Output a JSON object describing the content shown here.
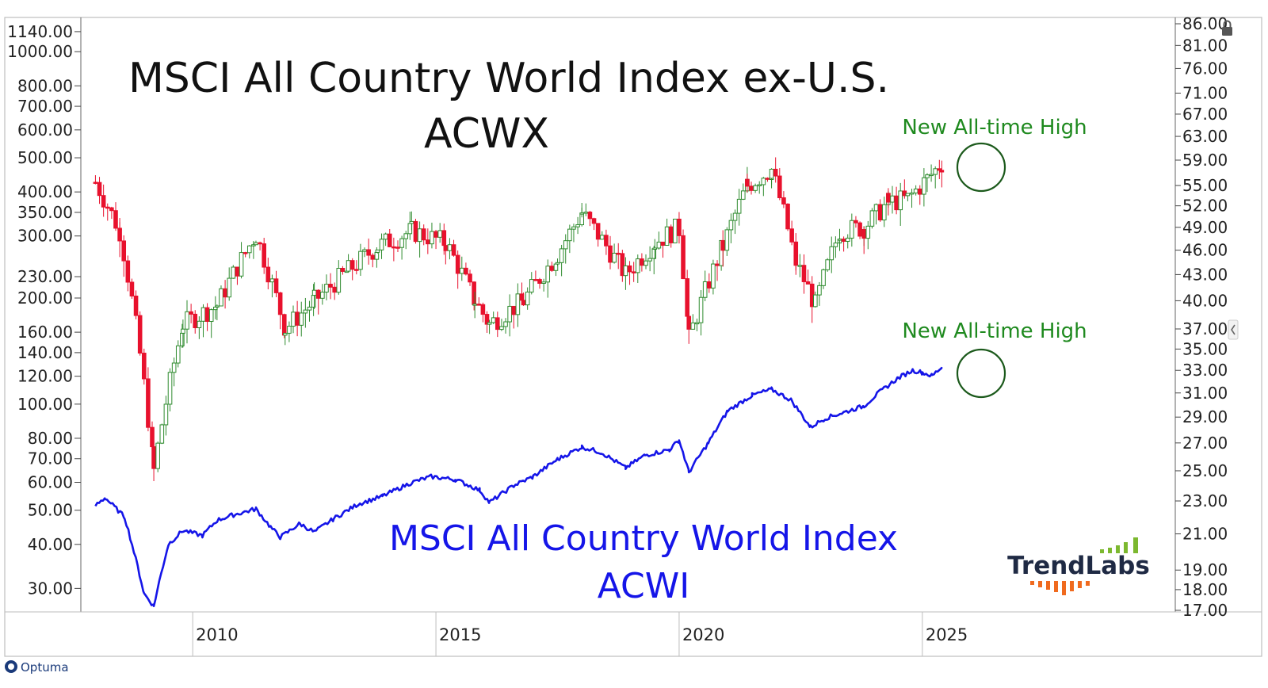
{
  "chart_data": {
    "type": "line",
    "title": "MSCI All Country World Index ex-U.S.",
    "subtitle": "ACWX",
    "second_title": "MSCI All Country World Index",
    "second_subtitle": "ACWI",
    "annotations": [
      {
        "text": "New All-time High",
        "series": "ACWX",
        "x": 2025.15
      },
      {
        "text": "New All-time High",
        "series": "ACWI",
        "x": 2025.15
      }
    ],
    "left_axis": {
      "scale": "log",
      "ticks": [
        "1140.00",
        "1000.00",
        "800.00",
        "700.00",
        "600.00",
        "500.00",
        "400.00",
        "350.00",
        "300.00",
        "230.00",
        "200.00",
        "160.00",
        "140.00",
        "120.00",
        "100.00",
        "80.00",
        "70.00",
        "60.00",
        "50.00",
        "40.00",
        "30.00"
      ],
      "range": [
        26,
        1200
      ]
    },
    "right_axis": {
      "scale": "log",
      "ticks": [
        "86.00",
        "81.00",
        "76.00",
        "71.00",
        "67.00",
        "63.00",
        "59.00",
        "55.00",
        "52.00",
        "49.00",
        "46.00",
        "43.00",
        "40.00",
        "37.00",
        "35.00",
        "33.00",
        "31.00",
        "29.00",
        "27.00",
        "25.00",
        "23.00",
        "21.00",
        "19.00",
        "18.00",
        "17.00"
      ],
      "range": [
        17,
        86
      ]
    },
    "x_axis": {
      "ticks": [
        "2010",
        "2015",
        "2020",
        "2025"
      ],
      "range": [
        2007.7,
        2030.2
      ]
    },
    "series": [
      {
        "ticker": "ACWX",
        "style": "candlestick",
        "axis": "right",
        "color_up": "#2e8b2e",
        "color_down": "#e8112d",
        "x": [
          2008.0,
          2008.5,
          2009.2,
          2009.8,
          2010.5,
          2011.3,
          2011.9,
          2012.5,
          2013.2,
          2013.8,
          2014.5,
          2015.2,
          2015.8,
          2016.1,
          2016.8,
          2017.5,
          2018.0,
          2018.9,
          2019.5,
          2020.0,
          2020.2,
          2020.9,
          2021.4,
          2021.9,
          2022.4,
          2022.8,
          2023.3,
          2023.8,
          2024.3,
          2024.7,
          2025.1,
          2025.4
        ],
        "close": [
          55.5,
          48.5,
          25.0,
          37.5,
          39.5,
          48.0,
          37.0,
          40.0,
          43.5,
          46.5,
          48.5,
          47.0,
          40.0,
          37.5,
          40.0,
          45.5,
          51.0,
          43.0,
          47.0,
          49.0,
          36.0,
          46.5,
          55.0,
          57.5,
          44.5,
          39.5,
          48.5,
          49.0,
          52.5,
          53.0,
          56.0,
          58.5
        ]
      },
      {
        "ticker": "ACWI",
        "style": "line",
        "axis": "right",
        "color": "#1515e8",
        "x": [
          2008.0,
          2008.2,
          2008.6,
          2009.0,
          2009.2,
          2009.5,
          2009.8,
          2010.2,
          2010.5,
          2010.8,
          2011.3,
          2011.6,
          2011.8,
          2012.2,
          2012.5,
          2012.9,
          2013.4,
          2013.9,
          2014.5,
          2014.9,
          2015.4,
          2015.9,
          2016.1,
          2016.6,
          2017.0,
          2017.5,
          2018.0,
          2018.4,
          2018.9,
          2019.3,
          2019.8,
          2020.0,
          2020.2,
          2020.6,
          2021.0,
          2021.5,
          2021.9,
          2022.3,
          2022.7,
          2023.0,
          2023.4,
          2023.8,
          2024.1,
          2024.5,
          2024.8,
          2025.0,
          2025.2,
          2025.4
        ],
        "close": [
          22.7,
          23.2,
          22.0,
          17.8,
          17.2,
          20.4,
          21.2,
          20.9,
          21.8,
          22.1,
          22.5,
          21.4,
          20.8,
          21.6,
          21.1,
          21.9,
          22.8,
          23.3,
          24.2,
          24.6,
          24.4,
          23.7,
          22.9,
          24.0,
          24.6,
          25.8,
          26.7,
          26.3,
          25.2,
          26.1,
          26.5,
          27.2,
          24.9,
          27.0,
          29.5,
          30.8,
          31.3,
          30.4,
          28.2,
          28.9,
          29.4,
          29.9,
          31.0,
          32.3,
          33.0,
          32.8,
          32.5,
          33.3
        ]
      }
    ],
    "grid": false,
    "colors": {
      "ath": "#1f8a1f",
      "acwi": "#1515e8",
      "up": "#2e8b2e",
      "down": "#e8112d"
    }
  },
  "branding": {
    "logo": "TrendLabs",
    "platform": "Optuma"
  }
}
